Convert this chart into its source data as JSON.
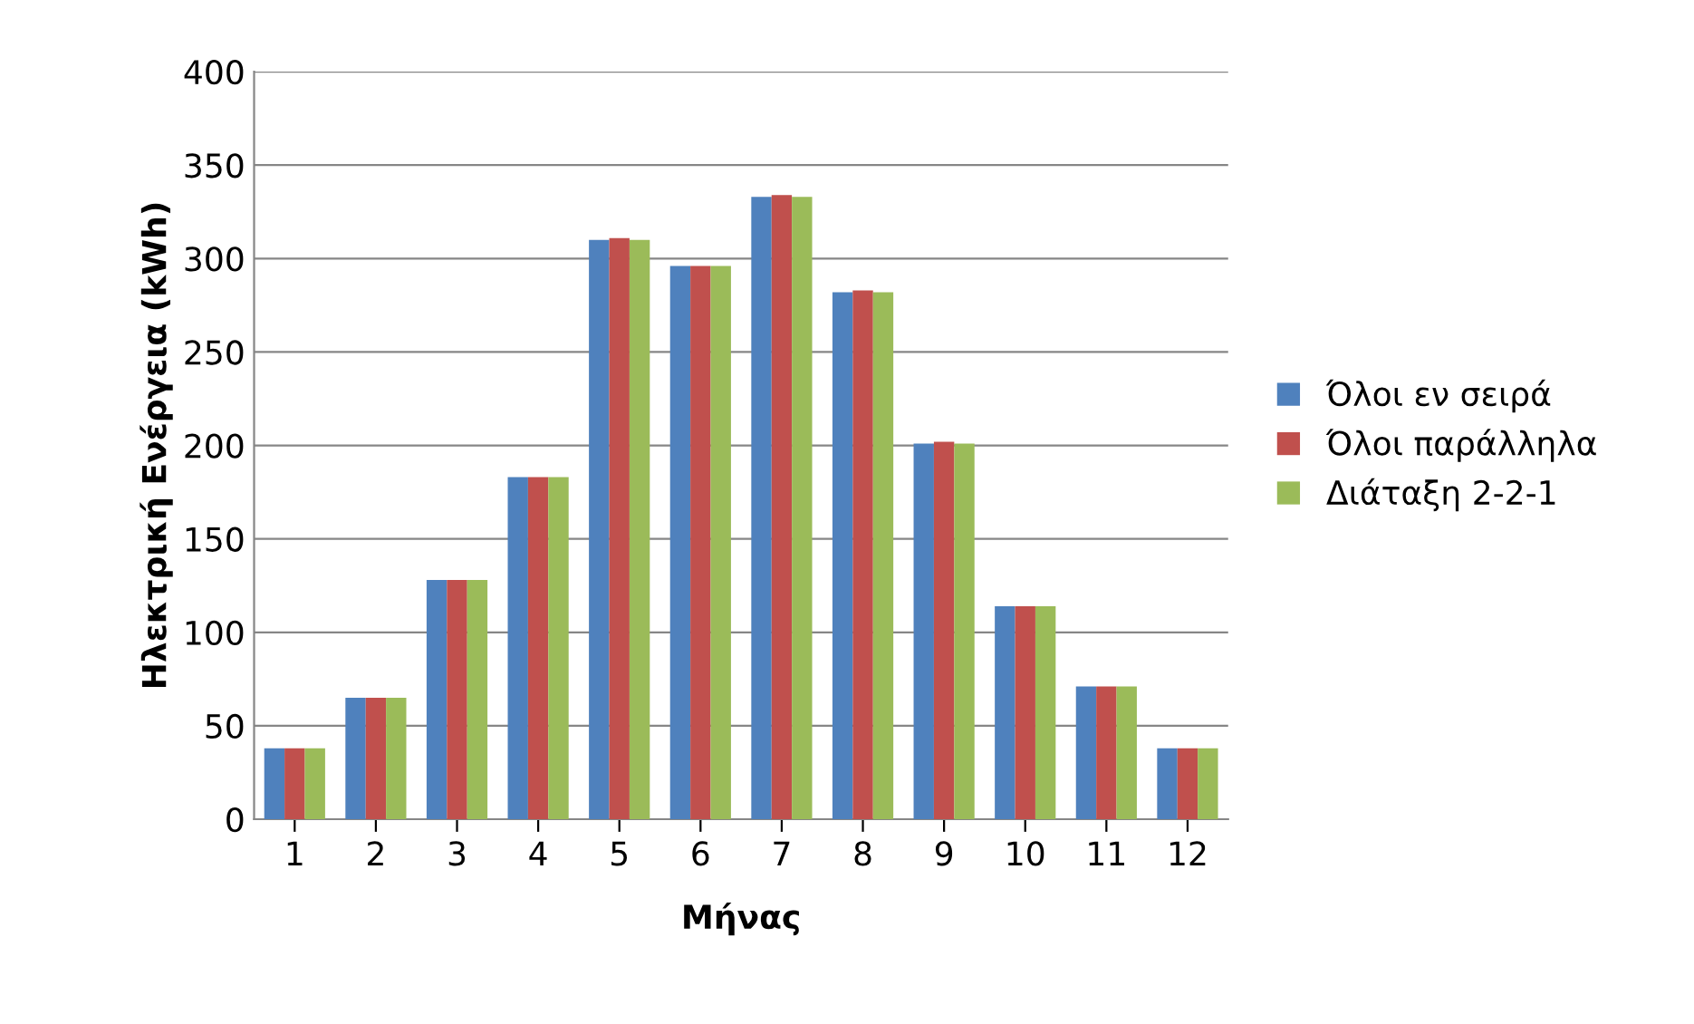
{
  "chart_data": {
    "type": "bar",
    "xlabel": "Μήνας",
    "ylabel": "Ηλεκτρική Ενέργεια (kWh)",
    "categories": [
      "1",
      "2",
      "3",
      "4",
      "5",
      "6",
      "7",
      "8",
      "9",
      "10",
      "11",
      "12"
    ],
    "series": [
      {
        "name": "Όλοι εν σειρά",
        "color": "#4f81bd",
        "values": [
          38,
          65,
          128,
          183,
          310,
          296,
          333,
          282,
          201,
          114,
          71,
          38
        ]
      },
      {
        "name": "Όλοι παράλληλα",
        "color": "#c0504d",
        "values": [
          38,
          65,
          128,
          183,
          311,
          296,
          334,
          283,
          202,
          114,
          71,
          38
        ]
      },
      {
        "name": "Διάταξη 2-2-1",
        "color": "#9bbb59",
        "values": [
          38,
          65,
          128,
          183,
          310,
          296,
          333,
          282,
          201,
          114,
          71,
          38
        ]
      }
    ],
    "ylim": [
      0,
      400
    ],
    "yticks": [
      0,
      50,
      100,
      150,
      200,
      250,
      300,
      350,
      400
    ],
    "grid": "y",
    "legend": "right"
  }
}
